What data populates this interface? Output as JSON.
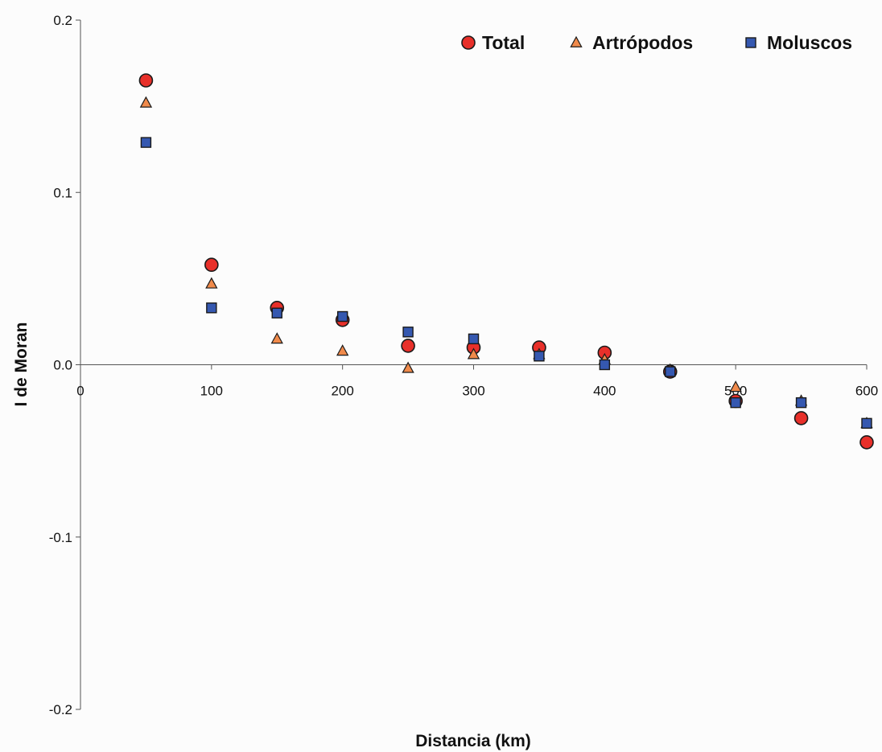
{
  "chart_data": {
    "type": "scatter",
    "title": "",
    "xlabel": "Distancia (km)",
    "ylabel": "I de Moran",
    "xlim": [
      0,
      600
    ],
    "ylim": [
      -0.2,
      0.2
    ],
    "xticks": [
      0,
      100,
      200,
      300,
      400,
      500,
      600
    ],
    "xtick_labels": [
      "0",
      "100",
      "200",
      "300",
      "400",
      "500",
      "600"
    ],
    "yticks": [
      0.2,
      0.1,
      0.0,
      -0.1,
      -0.2
    ],
    "ytick_labels": [
      "0.2",
      "0.1",
      "0.0",
      "-0.1",
      "-0.2"
    ],
    "grid": false,
    "legend": {
      "placement": "top-right",
      "orientation": "horizontal"
    },
    "series": [
      {
        "name": "Total",
        "marker": "circle",
        "color": "#e8302a",
        "points": [
          [
            50,
            0.165
          ],
          [
            100,
            0.058
          ],
          [
            150,
            0.033
          ],
          [
            200,
            0.026
          ],
          [
            250,
            0.011
          ],
          [
            300,
            0.01
          ],
          [
            350,
            0.01
          ],
          [
            400,
            0.007
          ],
          [
            450,
            -0.004
          ],
          [
            500,
            -0.021
          ],
          [
            550,
            -0.031
          ],
          [
            600,
            -0.045
          ]
        ]
      },
      {
        "name": "Artrópodos",
        "marker": "triangle",
        "color": "#f08a4b",
        "points": [
          [
            50,
            0.152
          ],
          [
            100,
            0.047
          ],
          [
            150,
            0.015
          ],
          [
            200,
            0.008
          ],
          [
            250,
            -0.002
          ],
          [
            300,
            0.006
          ],
          [
            350,
            0.006
          ],
          [
            400,
            0.003
          ],
          [
            450,
            -0.003
          ],
          [
            500,
            -0.013
          ],
          [
            550,
            -0.021
          ],
          [
            600,
            -0.034
          ]
        ]
      },
      {
        "name": "Moluscos",
        "marker": "square",
        "color": "#3558b0",
        "points": [
          [
            50,
            0.129
          ],
          [
            100,
            0.033
          ],
          [
            150,
            0.03
          ],
          [
            200,
            0.028
          ],
          [
            250,
            0.019
          ],
          [
            300,
            0.015
          ],
          [
            350,
            0.005
          ],
          [
            400,
            0.0
          ],
          [
            450,
            -0.004
          ],
          [
            500,
            -0.022
          ],
          [
            550,
            -0.022
          ],
          [
            600,
            -0.034
          ]
        ]
      }
    ]
  }
}
